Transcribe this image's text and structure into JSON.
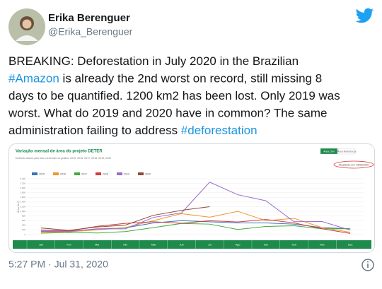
{
  "tweet": {
    "author": {
      "name": "Erika Berenguer",
      "handle": "@Erika_Berenguer"
    },
    "text_lines": [
      [
        "BREAKING: Deforestation in July 2020 in the Brazilian"
      ],
      [
        "#Amazon",
        " is already the 2nd worst on record, still missing 8"
      ],
      [
        "days to be quantified. 1200 km2 has been lost. Only 2019 was"
      ],
      [
        "worst. What do 2019 and 2020 have in common? The same"
      ],
      [
        "administration failing to address ",
        "#deforestation"
      ]
    ],
    "timestamp": "5:27 PM · Jul 31, 2020"
  },
  "chart_data": {
    "type": "line",
    "title": "Variação mensal de área do projeto DETER",
    "subtitle": "Exibindo dados para todo o intervalo do gráfico: 2015, 2016, 2017, 2018, 2019, 2020",
    "buttons": [
      "Área Civil",
      "Área Referência"
    ],
    "annotation": "Atualizado em: 03/08/2020",
    "y_label": "Área (km²)",
    "categories": [
      "Jan",
      "Fev",
      "Mar",
      "Abr",
      "Mai",
      "Jun",
      "Jul",
      "Ago",
      "Set",
      "Out",
      "Nov",
      "Dez"
    ],
    "series": [
      {
        "name": "2015",
        "color": "#3a6fc4",
        "values": [
          200,
          150,
          240,
          290,
          500,
          600,
          550,
          500,
          500,
          450,
          300,
          250
        ]
      },
      {
        "name": "2016",
        "color": "#f0962a",
        "values": [
          100,
          120,
          200,
          300,
          600,
          900,
          750,
          1000,
          600,
          700,
          300,
          100
        ]
      },
      {
        "name": "2017",
        "color": "#3cae3c",
        "values": [
          60,
          90,
          70,
          130,
          300,
          480,
          450,
          220,
          350,
          380,
          250,
          250
        ]
      },
      {
        "name": "2018",
        "color": "#d23c3c",
        "values": [
          183,
          159,
          357,
          483,
          550,
          488,
          597,
          544,
          650,
          500,
          250,
          50
        ]
      },
      {
        "name": "2019",
        "color": "#9b6bc9",
        "values": [
          136,
          137,
          250,
          248,
          739,
          935,
          2255,
          1714,
          1454,
          555,
          563,
          190
        ]
      },
      {
        "name": "2020",
        "color": "#8b4a3c",
        "values": [
          284,
          184,
          327,
          406,
          830,
          1043,
          1200,
          null,
          null,
          null,
          null,
          null
        ]
      }
    ],
    "ylim": [
      0,
      2400
    ],
    "yticks": [
      0,
      200,
      400,
      600,
      800,
      {
        "value": 1000,
        "label": "1,000"
      },
      {
        "value": 1200,
        "label": "1,200"
      },
      {
        "value": 1400,
        "label": "1,400"
      },
      {
        "value": 1600,
        "label": "1,600"
      },
      {
        "value": 1800,
        "label": "1,800"
      },
      {
        "value": 2000,
        "label": "2,000"
      },
      {
        "value": 2200,
        "label": "2,200"
      },
      {
        "value": 2400,
        "label": "2,400"
      }
    ],
    "grid": true,
    "band_color": "#1e8a4c"
  }
}
